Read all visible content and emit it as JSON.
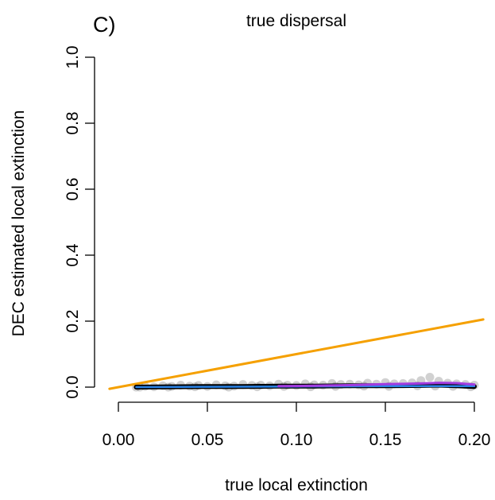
{
  "chart_data": {
    "type": "scatter",
    "panel_label": "C)",
    "title": "true dispersal",
    "xlabel": "true local extinction",
    "ylabel": "DEC estimated local extinction",
    "xlim": [
      0.0,
      0.2
    ],
    "ylim": [
      0.0,
      1.0
    ],
    "x_ticks": [
      "0.00",
      "0.05",
      "0.10",
      "0.15",
      "0.20"
    ],
    "y_ticks": [
      "0.0",
      "0.2",
      "0.4",
      "0.6",
      "0.8",
      "1.0"
    ],
    "grid": false,
    "legend": "none",
    "series": [
      {
        "role": "identity-line",
        "color": "#F5A000",
        "x": [
          -0.005,
          0.205
        ],
        "y": [
          -0.005,
          0.205
        ]
      },
      {
        "role": "scatter-points",
        "color": "#000000",
        "x": [
          0.01,
          0.015,
          0.02,
          0.025,
          0.03,
          0.035,
          0.04,
          0.045,
          0.05,
          0.055,
          0.06,
          0.065,
          0.07,
          0.075,
          0.08,
          0.085,
          0.09,
          0.095,
          0.1,
          0.105,
          0.11,
          0.115,
          0.12,
          0.125,
          0.13,
          0.135,
          0.14,
          0.145,
          0.15,
          0.155,
          0.16,
          0.165,
          0.17,
          0.175,
          0.18,
          0.185,
          0.19,
          0.195,
          0.2,
          0.012,
          0.028,
          0.043,
          0.062,
          0.078,
          0.093,
          0.108,
          0.122,
          0.138,
          0.152,
          0.168,
          0.178,
          0.188,
          0.198
        ],
        "y": [
          0.0,
          0.002,
          0.001,
          0.004,
          0.002,
          0.006,
          0.003,
          0.005,
          0.002,
          0.007,
          0.004,
          0.003,
          0.008,
          0.005,
          0.006,
          0.004,
          0.009,
          0.006,
          0.005,
          0.01,
          0.007,
          0.006,
          0.011,
          0.008,
          0.009,
          0.007,
          0.012,
          0.009,
          0.014,
          0.01,
          0.011,
          0.013,
          0.02,
          0.03,
          0.018,
          0.012,
          0.01,
          0.008,
          0.006,
          0.0,
          0.0,
          0.001,
          0.0,
          0.001,
          0.002,
          0.001,
          0.002,
          0.003,
          0.002,
          0.004,
          0.003,
          0.002,
          0.001
        ]
      },
      {
        "role": "smooth-black",
        "color": "#000000",
        "x": [
          0.01,
          0.03,
          0.05,
          0.07,
          0.09,
          0.11,
          0.13,
          0.15,
          0.17,
          0.18,
          0.19,
          0.2
        ],
        "y": [
          0.0,
          0.001,
          0.002,
          0.002,
          0.003,
          0.003,
          0.004,
          0.004,
          0.005,
          0.006,
          0.004,
          0.002
        ]
      },
      {
        "role": "smooth-blue",
        "color": "#2B83E6",
        "x": [
          0.01,
          0.05,
          0.1,
          0.15,
          0.2
        ],
        "y": [
          0.0,
          0.001,
          0.002,
          0.003,
          0.003
        ]
      },
      {
        "role": "smooth-purple",
        "color": "#A23BE0",
        "x": [
          0.09,
          0.11,
          0.13,
          0.15,
          0.16,
          0.17,
          0.18,
          0.19,
          0.2
        ],
        "y": [
          0.003,
          0.004,
          0.006,
          0.009,
          0.01,
          0.011,
          0.013,
          0.012,
          0.008
        ]
      }
    ]
  }
}
